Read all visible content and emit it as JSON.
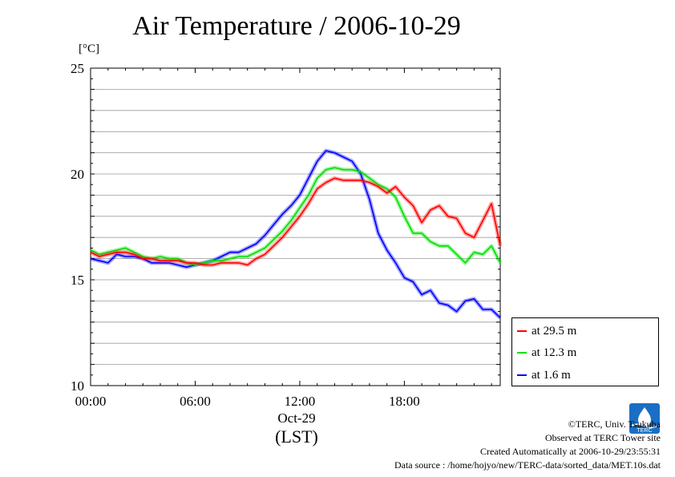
{
  "title": "Air Temperature / 2006-10-29",
  "unit_label": "[°C]",
  "x_date_label": "Oct-29",
  "x_unit_label": "(LST)",
  "legend": [
    {
      "label": "at 29.5 m",
      "color": "#ff0000"
    },
    {
      "label": "at 12.3 m",
      "color": "#00e000"
    },
    {
      "label": "at 1.6 m",
      "color": "#0000ff"
    }
  ],
  "credits": {
    "copyright": "©TERC, Univ. Tsukuba",
    "site": "Observed at TERC Tower site",
    "created": "Created Automatically at 2006-10-29/23:55:31",
    "source": "Data source : /home/hojyo/new/TERC-data/sorted_data/MET.10s.dat"
  },
  "logo_text": "TERC",
  "chart_data": {
    "type": "line",
    "title": "Air Temperature / 2006-10-29",
    "xlabel": "(LST)",
    "ylabel": "[°C]",
    "x_unit": "hour of day (LST)",
    "xlim": [
      0,
      23.5
    ],
    "ylim": [
      10,
      25
    ],
    "y_ticks": [
      10,
      15,
      20,
      25
    ],
    "x_ticks": [
      {
        "value": 0,
        "label": "00:00"
      },
      {
        "value": 6,
        "label": "06:00"
      },
      {
        "value": 12,
        "label": "12:00"
      },
      {
        "value": 18,
        "label": "18:00"
      }
    ],
    "grid": "horizontal, every 1 °C",
    "legend_position": "bottom-right, outside plot",
    "x": [
      0,
      0.5,
      1,
      1.5,
      2,
      2.5,
      3,
      3.5,
      4,
      4.5,
      5,
      5.5,
      6,
      6.5,
      7,
      7.5,
      8,
      8.5,
      9,
      9.5,
      10,
      10.5,
      11,
      11.5,
      12,
      12.5,
      13,
      13.5,
      14,
      14.5,
      15,
      15.5,
      16,
      16.5,
      17,
      17.5,
      18,
      18.5,
      19,
      19.5,
      20,
      20.5,
      21,
      21.5,
      22,
      22.5,
      23,
      23.5
    ],
    "series": [
      {
        "name": "at 29.5 m",
        "color": "#ff0000",
        "values": [
          16.3,
          16.1,
          16.2,
          16.3,
          16.3,
          16.2,
          16.0,
          16.0,
          15.9,
          15.9,
          15.9,
          15.8,
          15.8,
          15.7,
          15.7,
          15.8,
          15.8,
          15.8,
          15.7,
          16.0,
          16.2,
          16.6,
          17.0,
          17.5,
          18.0,
          18.6,
          19.3,
          19.6,
          19.8,
          19.7,
          19.7,
          19.7,
          19.6,
          19.4,
          19.1,
          19.4,
          18.9,
          18.5,
          17.7,
          18.3,
          18.5,
          18.0,
          17.9,
          17.2,
          17.0,
          17.8,
          18.6,
          16.6
        ]
      },
      {
        "name": "at 12.3 m",
        "color": "#00e000",
        "values": [
          16.4,
          16.2,
          16.3,
          16.4,
          16.5,
          16.3,
          16.1,
          16.0,
          16.1,
          16.0,
          16.0,
          15.8,
          15.7,
          15.8,
          15.9,
          15.9,
          16.0,
          16.1,
          16.1,
          16.3,
          16.5,
          16.9,
          17.3,
          17.8,
          18.4,
          19.0,
          19.8,
          20.2,
          20.3,
          20.2,
          20.2,
          20.1,
          19.8,
          19.5,
          19.3,
          18.9,
          18.0,
          17.2,
          17.2,
          16.8,
          16.6,
          16.6,
          16.2,
          15.8,
          16.3,
          16.2,
          16.6,
          15.8
        ]
      },
      {
        "name": "at 1.6 m",
        "color": "#0000ff",
        "values": [
          16.0,
          15.9,
          15.8,
          16.2,
          16.1,
          16.1,
          16.0,
          15.8,
          15.8,
          15.8,
          15.7,
          15.6,
          15.7,
          15.8,
          15.9,
          16.1,
          16.3,
          16.3,
          16.5,
          16.7,
          17.1,
          17.6,
          18.1,
          18.5,
          19.0,
          19.8,
          20.6,
          21.1,
          21.0,
          20.8,
          20.6,
          20.0,
          18.8,
          17.2,
          16.4,
          15.8,
          15.1,
          14.9,
          14.3,
          14.5,
          13.9,
          13.8,
          13.5,
          14.0,
          14.1,
          13.6,
          13.6,
          13.2
        ]
      }
    ]
  }
}
